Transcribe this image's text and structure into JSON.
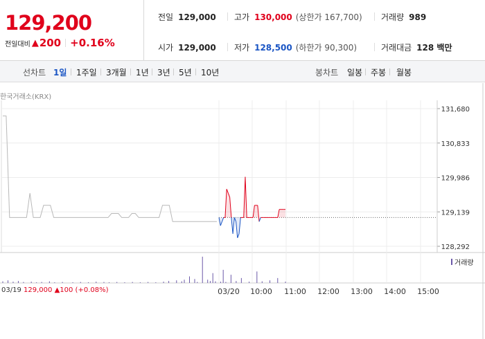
{
  "summary": {
    "current_price": "129,200",
    "change_label": "전일대비",
    "change_amount": "200",
    "change_percent": "+0.16%",
    "prev_close": {
      "label": "전일",
      "value": "129,000"
    },
    "open": {
      "label": "시가",
      "value": "129,000"
    },
    "high": {
      "label": "고가",
      "value": "130,000",
      "sub": "(상한가 167,700)"
    },
    "low": {
      "label": "저가",
      "value": "128,500",
      "sub": "(하한가 90,300)"
    },
    "volume": {
      "label": "거래량",
      "value": "989"
    },
    "trade_value": {
      "label": "거래대금",
      "value": "128 백만"
    }
  },
  "toolbar": {
    "line_label": "선차트",
    "periods": [
      "1일",
      "1주일",
      "3개월",
      "1년",
      "3년",
      "5년",
      "10년"
    ],
    "active_period": "1일",
    "candle_label": "봉차트",
    "candles": [
      "일봉",
      "주봉",
      "월봉"
    ]
  },
  "chart_data": {
    "type": "line",
    "exchange_label": "한국거래소(KRX)",
    "y_ticks": [
      "131,680",
      "130,833",
      "129,986",
      "129,139",
      "128,292"
    ],
    "ylim": [
      128292,
      131680
    ],
    "x_ticks": [
      "03/19",
      "03/20",
      "10:00",
      "11:00",
      "12:00",
      "13:00",
      "14:00",
      "15:00"
    ],
    "reference_price": 129000,
    "legend": "거래량",
    "prev_day_info": {
      "date": "03/19",
      "price": "129,000",
      "change": "100",
      "pct": "(+0.08%)"
    },
    "prev_day_series": [
      131500,
      131500,
      129000,
      129000,
      129000,
      129000,
      129000,
      129000,
      129600,
      129000,
      129000,
      129000,
      129300,
      129300,
      129300,
      129000,
      129000,
      129000,
      129000,
      129000,
      129000,
      129000,
      129000,
      129000,
      129000,
      129000,
      129000,
      129000,
      129000,
      129000,
      129000,
      129000,
      129100,
      129100,
      129100,
      129000,
      129000,
      129000,
      129100,
      129100,
      129000,
      129000,
      129000,
      129000,
      129000,
      129000,
      129000,
      129300,
      129300,
      129300,
      128900,
      128900,
      128900,
      128900,
      128900,
      128900,
      128900,
      128900,
      128900,
      128900,
      128900,
      128900,
      128900,
      128900
    ],
    "today_series": [
      129000,
      128800,
      128900,
      129000,
      129000,
      129700,
      129600,
      129500,
      129000,
      128600,
      129000,
      128900,
      128500,
      128600,
      129000,
      129000,
      129000,
      130000,
      129000,
      129000,
      129000,
      129000,
      129000,
      129300,
      129300,
      129300,
      128900,
      129000,
      129000,
      129000,
      129000,
      129000,
      129000,
      129000,
      129000,
      129000,
      129000,
      129000,
      129000,
      129200,
      129200,
      129200,
      129200,
      129200
    ],
    "volume_series": [
      5,
      0,
      8,
      0,
      4,
      0,
      6,
      0,
      3,
      0,
      0,
      4,
      0,
      2,
      0,
      3,
      0,
      0,
      5,
      0,
      2,
      0,
      0,
      3,
      0,
      0,
      0,
      2,
      0,
      0,
      3,
      0,
      0,
      2,
      0,
      0,
      4,
      0,
      0,
      3,
      0,
      2,
      0,
      0,
      3,
      0,
      0,
      2,
      0,
      0,
      3,
      0,
      0,
      2,
      0,
      0,
      3,
      0,
      0,
      2,
      0,
      0,
      4,
      0,
      6,
      0,
      0,
      8,
      0,
      5,
      10,
      0,
      20,
      0,
      12,
      3,
      0,
      80,
      0,
      10,
      6,
      30,
      5,
      0,
      4,
      40,
      3,
      0,
      25,
      0,
      6,
      0,
      15,
      0,
      0,
      4,
      0,
      0,
      35,
      0,
      5,
      0,
      0,
      8,
      0,
      0,
      15,
      0,
      0,
      4
    ]
  },
  "colors": {
    "up": "#e0001b",
    "down": "#1a55c4",
    "prev_line": "#b8b8b8",
    "volume": "#6a58a8"
  }
}
